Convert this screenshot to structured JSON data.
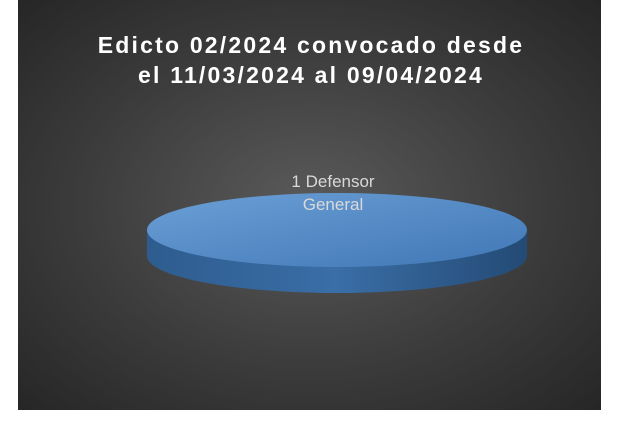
{
  "chart_data": {
    "type": "pie",
    "title": "Edicto 02/2024 convocado desde el 11/03/2024 al 09/04/2024",
    "categories": [
      "Defensor General"
    ],
    "values": [
      1
    ],
    "colors": [
      "#4f87c5"
    ]
  }
}
